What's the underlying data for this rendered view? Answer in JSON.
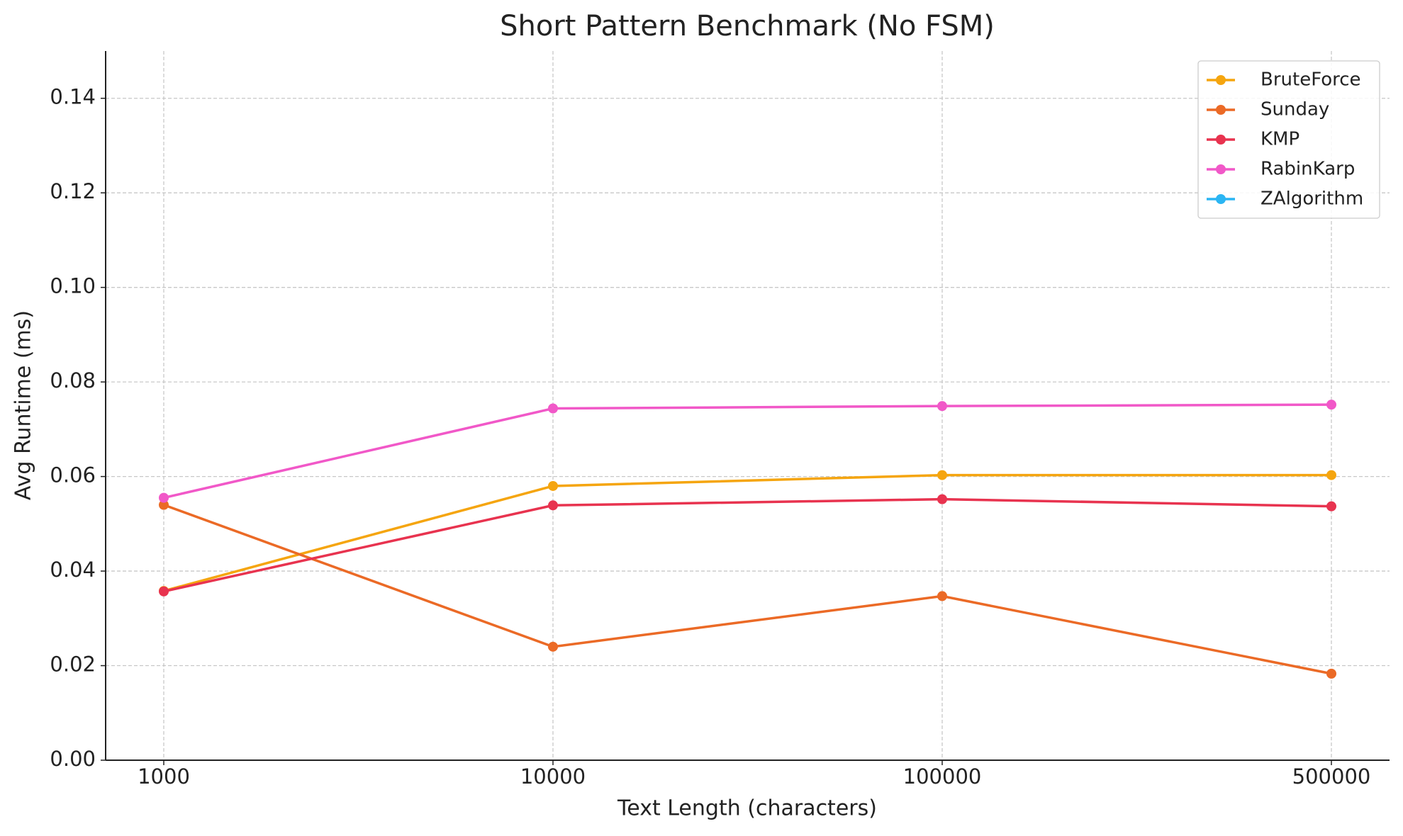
{
  "chart_data": {
    "type": "line",
    "title": "Short Pattern Benchmark (No FSM)",
    "xlabel": "Text Length (characters)",
    "ylabel": "Avg Runtime (ms)",
    "categories": [
      "1000",
      "10000",
      "100000",
      "500000"
    ],
    "series": [
      {
        "name": "BruteForce",
        "color": "#f5a50f",
        "values": [
          0.0358,
          0.058,
          0.0603,
          0.0603
        ]
      },
      {
        "name": "Sunday",
        "color": "#eb6a26",
        "values": [
          0.054,
          0.024,
          0.0347,
          0.0183
        ]
      },
      {
        "name": "KMP",
        "color": "#e8334f",
        "values": [
          0.0357,
          0.0539,
          0.0552,
          0.0537
        ]
      },
      {
        "name": "RabinKarp",
        "color": "#f158c8",
        "values": [
          0.0555,
          0.0744,
          0.0749,
          0.0752
        ]
      },
      {
        "name": "ZAlgorithm",
        "color": "#2bb5f3",
        "values": [
          null,
          null,
          null,
          null
        ]
      }
    ],
    "ylim": [
      0,
      0.15
    ],
    "yticks": [
      {
        "value": 0,
        "label": "0.00"
      },
      {
        "value": 0.02,
        "label": "0.02"
      },
      {
        "value": 0.04,
        "label": "0.04"
      },
      {
        "value": 0.06,
        "label": "0.06"
      },
      {
        "value": 0.08,
        "label": "0.08"
      },
      {
        "value": 0.1,
        "label": "0.10"
      },
      {
        "value": 0.12,
        "label": "0.12"
      },
      {
        "value": 0.14,
        "label": "0.14"
      }
    ],
    "grid": true,
    "legend": "upper right"
  }
}
